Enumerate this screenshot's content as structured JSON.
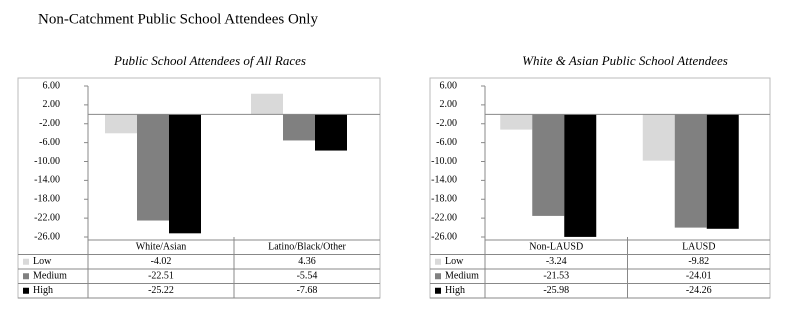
{
  "title": "Non-Catchment Public School Attendees Only",
  "chart_data": [
    {
      "type": "bar",
      "title": "Public School Attendees of All Races",
      "categories": [
        "White/Asian",
        "Latino/Black/Other"
      ],
      "series": [
        {
          "name": "Low",
          "color": "#d9d9d9",
          "values": [
            -4.02,
            4.36
          ]
        },
        {
          "name": "Medium",
          "color": "#808080",
          "values": [
            -22.51,
            -5.54
          ]
        },
        {
          "name": "High",
          "color": "#000000",
          "values": [
            -25.22,
            -7.68
          ]
        }
      ],
      "ylim": [
        -26,
        6
      ],
      "yticks": [
        {
          "value": 6,
          "label": "6.00"
        },
        {
          "value": 2,
          "label": "2.00"
        },
        {
          "value": -2,
          "label": "-2.00"
        },
        {
          "value": -6,
          "label": "-6.00"
        },
        {
          "value": -10,
          "label": "-10.00"
        },
        {
          "value": -14,
          "label": "-14.00"
        },
        {
          "value": -18,
          "label": "-18.00"
        },
        {
          "value": -22,
          "label": "-22.00"
        },
        {
          "value": -26,
          "label": "-26.00"
        }
      ]
    },
    {
      "type": "bar",
      "title": "White & Asian Public School Attendees",
      "categories": [
        "Non-LAUSD",
        "LAUSD"
      ],
      "series": [
        {
          "name": "Low",
          "color": "#d9d9d9",
          "values": [
            -3.24,
            -9.82
          ]
        },
        {
          "name": "Medium",
          "color": "#808080",
          "values": [
            -21.53,
            -24.01
          ]
        },
        {
          "name": "High",
          "color": "#000000",
          "values": [
            -25.98,
            -24.26
          ]
        }
      ],
      "ylim": [
        -26,
        6
      ],
      "yticks": [
        {
          "value": 6,
          "label": "6.00"
        },
        {
          "value": 2,
          "label": "2.00"
        },
        {
          "value": -2,
          "label": "-2.00"
        },
        {
          "value": -6,
          "label": "-6.00"
        },
        {
          "value": -10,
          "label": "-10.00"
        },
        {
          "value": -14,
          "label": "-14.00"
        },
        {
          "value": -18,
          "label": "-18.00"
        },
        {
          "value": -22,
          "label": "-22.00"
        },
        {
          "value": -26,
          "label": "-26.00"
        }
      ]
    }
  ]
}
